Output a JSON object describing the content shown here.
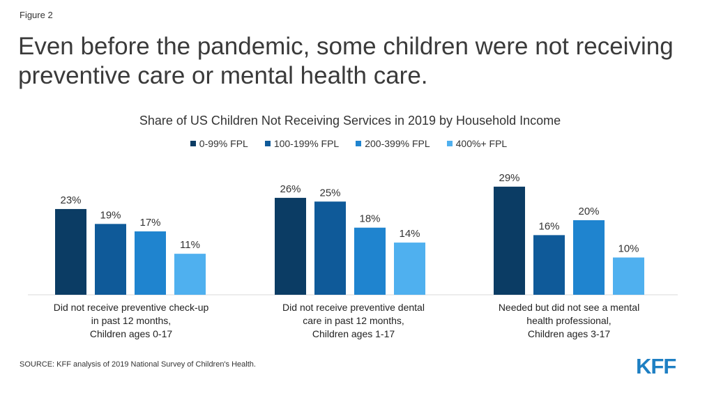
{
  "figure_label": "Figure 2",
  "headline": "Even before the pandemic, some children were not receiving preventive care or mental health care.",
  "source": "SOURCE: KFF analysis of 2019 National Survey of Children's Health.",
  "logo": "KFF",
  "colors": {
    "series": [
      "#0b3c64",
      "#0f5a99",
      "#1f84cf",
      "#4fb0ef"
    ],
    "axis": "#d9d9d9"
  },
  "chart_data": {
    "type": "bar",
    "title": "Share of US Children Not Receiving Services in 2019 by Household Income",
    "categories": [
      "Did not receive preventive check-up\nin past 12 months,\nChildren ages 0-17",
      "Did not receive preventive dental\ncare in past 12 months,\nChildren ages 1-17",
      "Needed but did not see a mental\nhealth professional,\nChildren ages 3-17"
    ],
    "series": [
      {
        "name": "0-99% FPL",
        "values": [
          23,
          26,
          29
        ]
      },
      {
        "name": "100-199% FPL",
        "values": [
          19,
          25,
          16
        ]
      },
      {
        "name": "200-399% FPL",
        "values": [
          17,
          18,
          20
        ]
      },
      {
        "name": "400%+ FPL",
        "values": [
          11,
          14,
          10
        ]
      }
    ],
    "value_suffix": "%",
    "xlabel": "",
    "ylabel": "",
    "ylim": [
      0,
      32
    ],
    "grid": false,
    "legend": "top-center"
  }
}
